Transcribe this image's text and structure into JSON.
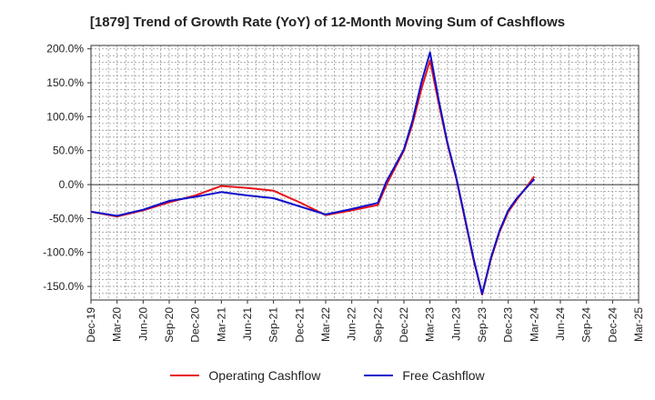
{
  "chart_data": {
    "type": "line",
    "title": "[1879]  Trend of Growth Rate (YoY) of 12-Month Moving Sum of Cashflows",
    "x": [
      "Dec-19",
      "Mar-20",
      "Jun-20",
      "Sep-20",
      "Dec-20",
      "Mar-21",
      "Jun-21",
      "Sep-21",
      "Dec-21",
      "Mar-22",
      "Jun-22",
      "Sep-22",
      "Dec-22",
      "Mar-23",
      "Jun-23",
      "Sep-23",
      "Dec-23",
      "Mar-24",
      "Jun-24",
      "Sep-24",
      "Dec-24",
      "Mar-25"
    ],
    "y_ticks": [
      200,
      150,
      100,
      50,
      0,
      -50,
      -100,
      -150
    ],
    "y_tick_labels": [
      "200.0%",
      "150.0%",
      "100.0%",
      "50.0%",
      "0.0%",
      "-50.0%",
      "-100.0%",
      "-150.0%"
    ],
    "ylim": [
      -170,
      205
    ],
    "grid": true,
    "legend_position": "bottom",
    "series": [
      {
        "name": "Operating Cashflow",
        "color": "#e8141b",
        "points": [
          [
            "Dec-19",
            -40
          ],
          [
            "Mar-20",
            -47
          ],
          [
            "Jun-20",
            -38
          ],
          [
            "Sep-20",
            -26
          ],
          [
            "Dec-20",
            -16
          ],
          [
            "Mar-21",
            -2
          ],
          [
            "Jun-21",
            -5
          ],
          [
            "Sep-21",
            -9
          ],
          [
            "Dec-21",
            -26
          ],
          [
            "Mar-22",
            -45
          ],
          [
            "Jun-22",
            -38
          ],
          [
            "Sep-22",
            -30
          ],
          [
            "Dec-22",
            50
          ],
          [
            "Mar-23",
            183
          ],
          [
            "Jun-23",
            10
          ],
          [
            "Sep-23",
            -162
          ],
          [
            "Dec-23",
            -40
          ],
          [
            "Mar-24",
            12
          ]
        ],
        "curve": [
          [
            "Dec-19",
            -40
          ],
          [
            "Mar-20",
            -47
          ],
          [
            "Jun-20",
            -38
          ],
          [
            "Sep-20",
            -26
          ],
          [
            "Dec-20",
            -16
          ],
          [
            "Mar-21",
            -2
          ],
          [
            "Jun-21",
            -5
          ],
          [
            "Sep-21",
            -9
          ],
          [
            "Dec-21",
            -26
          ],
          [
            "Mar-22",
            -45
          ],
          [
            "Jun-22",
            -38
          ],
          [
            "Sep-22",
            -30
          ],
          [
            "Oct-22",
            0
          ],
          [
            "Nov-22",
            25
          ],
          [
            "Dec-22",
            50
          ],
          [
            "Jan-23",
            90
          ],
          [
            "Feb-23",
            140
          ],
          [
            "Mar-23",
            183
          ],
          [
            "Apr-23",
            120
          ],
          [
            "May-23",
            60
          ],
          [
            "Jun-23",
            10
          ],
          [
            "Jul-23",
            -50
          ],
          [
            "Aug-23",
            -110
          ],
          [
            "Sep-23",
            -162
          ],
          [
            "Oct-23",
            -110
          ],
          [
            "Nov-23",
            -70
          ],
          [
            "Dec-23",
            -40
          ],
          [
            "Jan-24",
            -22
          ],
          [
            "Feb-24",
            -5
          ],
          [
            "Mar-24",
            12
          ]
        ]
      },
      {
        "name": "Free Cashflow",
        "color": "#1010cc",
        "points": [
          [
            "Dec-19",
            -40
          ],
          [
            "Mar-20",
            -46
          ],
          [
            "Jun-20",
            -37
          ],
          [
            "Sep-20",
            -24
          ],
          [
            "Dec-20",
            -18
          ],
          [
            "Mar-21",
            -11
          ],
          [
            "Jun-21",
            -16
          ],
          [
            "Sep-21",
            -20
          ],
          [
            "Dec-21",
            -32
          ],
          [
            "Mar-22",
            -44
          ],
          [
            "Jun-22",
            -36
          ],
          [
            "Sep-22",
            -27
          ],
          [
            "Dec-22",
            52
          ],
          [
            "Mar-23",
            195
          ],
          [
            "Jun-23",
            12
          ],
          [
            "Sep-23",
            -161
          ],
          [
            "Dec-23",
            -38
          ],
          [
            "Mar-24",
            8
          ]
        ],
        "curve": [
          [
            "Dec-19",
            -40
          ],
          [
            "Mar-20",
            -46
          ],
          [
            "Jun-20",
            -37
          ],
          [
            "Sep-20",
            -24
          ],
          [
            "Dec-20",
            -18
          ],
          [
            "Mar-21",
            -11
          ],
          [
            "Jun-21",
            -16
          ],
          [
            "Sep-21",
            -20
          ],
          [
            "Dec-21",
            -32
          ],
          [
            "Mar-22",
            -44
          ],
          [
            "Jun-22",
            -36
          ],
          [
            "Sep-22",
            -27
          ],
          [
            "Oct-22",
            5
          ],
          [
            "Nov-22",
            28
          ],
          [
            "Dec-22",
            52
          ],
          [
            "Jan-23",
            95
          ],
          [
            "Feb-23",
            150
          ],
          [
            "Mar-23",
            195
          ],
          [
            "Apr-23",
            125
          ],
          [
            "May-23",
            62
          ],
          [
            "Jun-23",
            12
          ],
          [
            "Jul-23",
            -48
          ],
          [
            "Aug-23",
            -108
          ],
          [
            "Sep-23",
            -161
          ],
          [
            "Oct-23",
            -108
          ],
          [
            "Nov-23",
            -68
          ],
          [
            "Dec-23",
            -38
          ],
          [
            "Jan-24",
            -20
          ],
          [
            "Feb-24",
            -6
          ],
          [
            "Mar-24",
            8
          ]
        ]
      }
    ]
  }
}
